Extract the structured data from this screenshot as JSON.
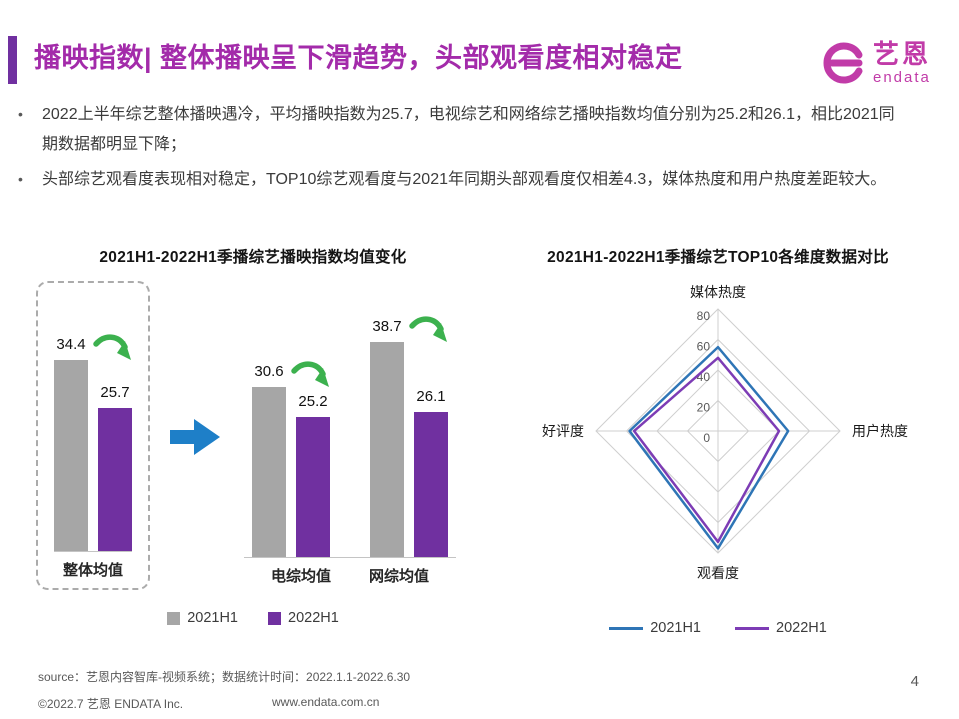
{
  "page": {
    "title": "播映指数| 整体播映呈下滑趋势，头部观看度相对稳定",
    "page_number": "4"
  },
  "logo": {
    "brand_cn": "艺恩",
    "brand_en": "endata",
    "color": "#C13BA8"
  },
  "bullets": [
    "2022上半年综艺整体播映遇冷，平均播映指数为25.7，电视综艺和网络综艺播映指数均值分别为25.2和26.1，相比2021同期数据都明显下降；",
    "头部综艺观看度表现相对稳定，TOP10综艺观看度与2021年同期头部观看度仅相差4.3，媒体热度和用户热度差距较大。"
  ],
  "chart_data": [
    {
      "type": "bar",
      "title": "2021H1-2022H1季播综艺播映指数均值变化",
      "categories": [
        "整体均值",
        "电综均值",
        "网综均值"
      ],
      "series": [
        {
          "name": "2021H1",
          "color": "#A6A6A6",
          "values": [
            34.4,
            30.6,
            38.7
          ]
        },
        {
          "name": "2022H1",
          "color": "#7030A0",
          "values": [
            25.7,
            25.2,
            26.1
          ]
        }
      ],
      "ylim": [
        0,
        45
      ],
      "grid": false,
      "legend_position": "bottom",
      "annotations": [
        "整体均值 group highlighted with dashed rounded box",
        "green decline arrow above each group",
        "blue transition arrow between first and second group"
      ]
    },
    {
      "type": "radar",
      "title": "2021H1-2022H1季播综艺TOP10各维度数据对比",
      "axes": [
        "媒体热度",
        "用户热度",
        "观看度",
        "好评度"
      ],
      "ticks": [
        0,
        20,
        40,
        60,
        80
      ],
      "axis_max": 80,
      "grid": true,
      "series": [
        {
          "name": "2021H1",
          "color": "#2E75B6",
          "values": [
            55,
            46,
            77,
            58
          ]
        },
        {
          "name": "2022H1",
          "color": "#7D3CB5",
          "values": [
            48,
            40,
            72.7,
            55
          ]
        }
      ],
      "legend_position": "bottom"
    }
  ],
  "footer": {
    "source": "source：艺恩内容智库-视频系统；数据统计时间：2022.1.1-2022.6.30",
    "copyright": "©2022.7 艺恩 ENDATA Inc.",
    "website": "www.endata.com.cn"
  }
}
